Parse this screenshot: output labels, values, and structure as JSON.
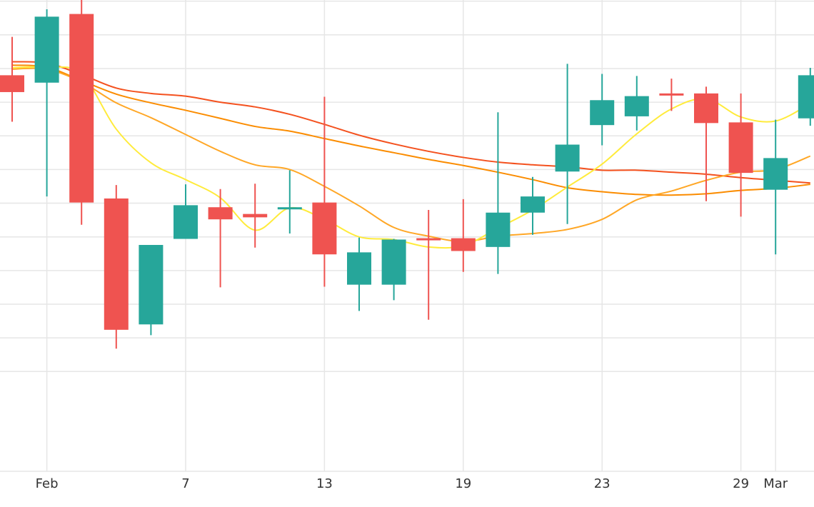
{
  "chart_data": {
    "type": "candlestick",
    "title": "",
    "xlabel": "",
    "ylabel": "",
    "grid": true,
    "x_ticks": [
      {
        "label": "Feb",
        "index": 1
      },
      {
        "label": "7",
        "index": 5
      },
      {
        "label": "13",
        "index": 9
      },
      {
        "label": "19",
        "index": 13
      },
      {
        "label": "23",
        "index": 17
      },
      {
        "label": "29",
        "index": 21
      },
      {
        "label": "Mar",
        "index": 22
      }
    ],
    "y_gridlines": [
      -1.0,
      -0.5,
      0,
      0.5,
      1.0,
      1.5,
      2.0,
      2.5,
      3.0,
      3.5,
      4.0,
      4.5,
      5.0,
      5.5,
      6.0
    ],
    "ylim": [
      -1.0,
      6.0
    ],
    "candles": [
      {
        "i": 0,
        "o": 3.4,
        "h": 3.97,
        "l": 2.71,
        "c": 3.15
      },
      {
        "i": 1,
        "o": 3.29,
        "h": 4.38,
        "l": 1.6,
        "c": 4.27
      },
      {
        "i": 2,
        "o": 4.31,
        "h": 4.86,
        "l": 1.18,
        "c": 1.51
      },
      {
        "i": 3,
        "o": 1.57,
        "h": 1.77,
        "l": -0.66,
        "c": -0.38
      },
      {
        "i": 4,
        "o": -0.3,
        "h": 0.81,
        "l": -0.46,
        "c": 0.88
      },
      {
        "i": 5,
        "o": 0.97,
        "h": 1.78,
        "l": 1.0,
        "c": 1.47
      },
      {
        "i": 6,
        "o": 1.44,
        "h": 1.71,
        "l": 0.25,
        "c": 1.26
      },
      {
        "i": 7,
        "o": 1.34,
        "h": 1.79,
        "l": 0.84,
        "c": 1.29
      },
      {
        "i": 8,
        "o": 1.43,
        "h": 1.99,
        "l": 1.05,
        "c": 1.44
      },
      {
        "i": 9,
        "o": 1.51,
        "h": 3.08,
        "l": 0.26,
        "c": 0.74
      },
      {
        "i": 10,
        "o": 0.29,
        "h": 0.99,
        "l": -0.1,
        "c": 0.77
      },
      {
        "i": 11,
        "o": 0.29,
        "h": 0.97,
        "l": 0.06,
        "c": 0.96
      },
      {
        "i": 12,
        "o": 0.98,
        "h": 1.4,
        "l": -0.23,
        "c": 0.95
      },
      {
        "i": 13,
        "o": 0.98,
        "h": 1.56,
        "l": 0.48,
        "c": 0.79
      },
      {
        "i": 14,
        "o": 0.85,
        "h": 2.85,
        "l": 0.45,
        "c": 1.36
      },
      {
        "i": 15,
        "o": 1.36,
        "h": 1.89,
        "l": 1.03,
        "c": 1.6
      },
      {
        "i": 16,
        "o": 1.97,
        "h": 3.57,
        "l": 1.19,
        "c": 2.37
      },
      {
        "i": 17,
        "o": 2.66,
        "h": 3.42,
        "l": 2.36,
        "c": 3.03
      },
      {
        "i": 18,
        "o": 2.79,
        "h": 3.39,
        "l": 2.58,
        "c": 3.09
      },
      {
        "i": 19,
        "o": 3.13,
        "h": 3.35,
        "l": 2.87,
        "c": 3.11
      },
      {
        "i": 20,
        "o": 3.13,
        "h": 3.23,
        "l": 1.53,
        "c": 2.69
      },
      {
        "i": 21,
        "o": 2.7,
        "h": 3.13,
        "l": 1.3,
        "c": 1.95
      },
      {
        "i": 22,
        "o": 1.7,
        "h": 2.74,
        "l": 0.74,
        "c": 2.17
      },
      {
        "i": 23,
        "o": 2.76,
        "h": 3.51,
        "l": 2.65,
        "c": 3.4
      }
    ],
    "series": [
      {
        "color": "#ffeb3b",
        "values": [
          3.51,
          3.52,
          3.42,
          2.6,
          2.1,
          1.85,
          1.58,
          1.1,
          1.43,
          1.26,
          1.0,
          0.96,
          0.85,
          0.87,
          1.13,
          1.4,
          1.74,
          2.08,
          2.53,
          2.9,
          3.05,
          2.78,
          2.72,
          2.98
        ]
      },
      {
        "color": "#ffa726",
        "values": [
          3.49,
          3.49,
          3.3,
          2.99,
          2.77,
          2.52,
          2.27,
          2.07,
          2.0,
          1.75,
          1.46,
          1.14,
          1.01,
          0.93,
          1.01,
          1.05,
          1.11,
          1.26,
          1.55,
          1.68,
          1.84,
          1.96,
          2.0,
          2.2
        ]
      },
      {
        "color": "#fb8c00",
        "values": [
          3.55,
          3.52,
          3.32,
          3.12,
          2.99,
          2.88,
          2.76,
          2.64,
          2.57,
          2.46,
          2.35,
          2.25,
          2.15,
          2.06,
          1.96,
          1.85,
          1.73,
          1.67,
          1.63,
          1.62,
          1.64,
          1.69,
          1.72,
          1.78
        ]
      },
      {
        "color": "#f4511e",
        "values": [
          3.6,
          3.58,
          3.41,
          3.21,
          3.13,
          3.09,
          3.0,
          2.93,
          2.82,
          2.67,
          2.51,
          2.38,
          2.27,
          2.18,
          2.11,
          2.07,
          2.04,
          1.99,
          1.99,
          1.96,
          1.93,
          1.88,
          1.84,
          1.8
        ]
      }
    ]
  }
}
